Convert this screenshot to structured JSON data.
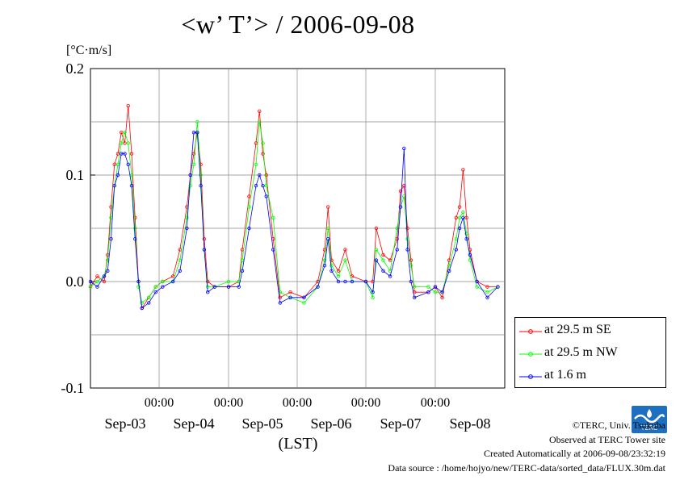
{
  "title": "<w’ T’> / 2006-09-08",
  "unit_label": "[°C·m/s]",
  "credits": {
    "copyright": "©TERC, Univ. Tsukuba",
    "site": "Observed at TERC Tower site",
    "created": "Created Automatically at 2006-09-08/23:32:19",
    "source": "Data source : /home/hojyo/new/TERC-data/sorted_data/FLUX.30m.dat"
  },
  "logo_text": "TERC",
  "legend": [
    {
      "label": "at 29.5 m SE",
      "color": "#ff0000"
    },
    {
      "label": "at 29.5 m NW",
      "color": "#00ff00"
    },
    {
      "label": "at 1.6 m",
      "color": "#0000ff"
    }
  ],
  "chart_data": {
    "type": "line",
    "title": "<w’ T’> / 2006-09-08",
    "ylabel": "[°C·m/s]",
    "xlabel": "(LST)",
    "ylim": [
      -0.1,
      0.2
    ],
    "yticks": [
      -0.1,
      0.0,
      0.1,
      0.2
    ],
    "ytick_labels": [
      "-0.1",
      "0.0",
      "0.1",
      "0.2"
    ],
    "xlim_days": [
      0,
      6
    ],
    "day_labels": [
      "Sep-03",
      "Sep-04",
      "Sep-05",
      "Sep-06",
      "Sep-07",
      "Sep-08"
    ],
    "time_label": "00:00",
    "grid": true,
    "legend_position": "right",
    "series": [
      {
        "name": "at 29.5 m SE",
        "color": "#ff0000",
        "points": [
          [
            0,
            -0.005
          ],
          [
            0.1,
            0.005
          ],
          [
            0.2,
            0.0
          ],
          [
            0.25,
            0.025
          ],
          [
            0.3,
            0.07
          ],
          [
            0.35,
            0.11
          ],
          [
            0.4,
            0.12
          ],
          [
            0.45,
            0.14
          ],
          [
            0.5,
            0.13
          ],
          [
            0.55,
            0.165
          ],
          [
            0.6,
            0.12
          ],
          [
            0.65,
            0.06
          ],
          [
            0.7,
            0.0
          ],
          [
            0.75,
            -0.025
          ],
          [
            0.85,
            -0.015
          ],
          [
            0.95,
            -0.005
          ],
          [
            1.05,
            0.0
          ],
          [
            1.2,
            0.005
          ],
          [
            1.3,
            0.03
          ],
          [
            1.4,
            0.07
          ],
          [
            1.45,
            0.1
          ],
          [
            1.5,
            0.12
          ],
          [
            1.55,
            0.14
          ],
          [
            1.6,
            0.11
          ],
          [
            1.65,
            0.04
          ],
          [
            1.7,
            0.0
          ],
          [
            1.8,
            -0.005
          ],
          [
            2.0,
            -0.005
          ],
          [
            2.15,
            0.0
          ],
          [
            2.2,
            0.03
          ],
          [
            2.3,
            0.08
          ],
          [
            2.4,
            0.13
          ],
          [
            2.45,
            0.16
          ],
          [
            2.5,
            0.12
          ],
          [
            2.55,
            0.1
          ],
          [
            2.65,
            0.04
          ],
          [
            2.75,
            -0.015
          ],
          [
            2.9,
            -0.01
          ],
          [
            3.1,
            -0.015
          ],
          [
            3.3,
            0.0
          ],
          [
            3.4,
            0.03
          ],
          [
            3.45,
            0.07
          ],
          [
            3.5,
            0.02
          ],
          [
            3.6,
            0.01
          ],
          [
            3.7,
            0.03
          ],
          [
            3.8,
            0.005
          ],
          [
            4.0,
            0.0
          ],
          [
            4.1,
            0.0
          ],
          [
            4.15,
            0.05
          ],
          [
            4.25,
            0.025
          ],
          [
            4.35,
            0.02
          ],
          [
            4.45,
            0.04
          ],
          [
            4.5,
            0.085
          ],
          [
            4.55,
            0.09
          ],
          [
            4.6,
            0.05
          ],
          [
            4.65,
            0.02
          ],
          [
            4.7,
            -0.01
          ],
          [
            4.9,
            -0.01
          ],
          [
            5.0,
            -0.005
          ],
          [
            5.1,
            -0.015
          ],
          [
            5.2,
            0.02
          ],
          [
            5.3,
            0.06
          ],
          [
            5.35,
            0.07
          ],
          [
            5.4,
            0.105
          ],
          [
            5.45,
            0.06
          ],
          [
            5.5,
            0.03
          ],
          [
            5.6,
            0.0
          ],
          [
            5.75,
            -0.005
          ],
          [
            5.9,
            -0.005
          ]
        ]
      },
      {
        "name": "at 29.5 m NW",
        "color": "#00ff00",
        "points": [
          [
            0,
            -0.005
          ],
          [
            0.1,
            0.0
          ],
          [
            0.2,
            0.005
          ],
          [
            0.25,
            0.02
          ],
          [
            0.3,
            0.06
          ],
          [
            0.35,
            0.09
          ],
          [
            0.4,
            0.11
          ],
          [
            0.45,
            0.13
          ],
          [
            0.5,
            0.14
          ],
          [
            0.55,
            0.13
          ],
          [
            0.6,
            0.1
          ],
          [
            0.65,
            0.05
          ],
          [
            0.7,
            -0.005
          ],
          [
            0.75,
            -0.02
          ],
          [
            0.85,
            -0.015
          ],
          [
            0.95,
            -0.005
          ],
          [
            1.05,
            0.0
          ],
          [
            1.2,
            0.0
          ],
          [
            1.3,
            0.02
          ],
          [
            1.4,
            0.06
          ],
          [
            1.45,
            0.09
          ],
          [
            1.5,
            0.11
          ],
          [
            1.55,
            0.15
          ],
          [
            1.6,
            0.1
          ],
          [
            1.65,
            0.03
          ],
          [
            1.7,
            -0.005
          ],
          [
            1.8,
            -0.005
          ],
          [
            2.0,
            0.0
          ],
          [
            2.15,
            0.0
          ],
          [
            2.2,
            0.02
          ],
          [
            2.3,
            0.07
          ],
          [
            2.4,
            0.11
          ],
          [
            2.45,
            0.15
          ],
          [
            2.5,
            0.13
          ],
          [
            2.55,
            0.09
          ],
          [
            2.65,
            0.06
          ],
          [
            2.75,
            -0.01
          ],
          [
            2.9,
            -0.015
          ],
          [
            3.1,
            -0.02
          ],
          [
            3.3,
            -0.005
          ],
          [
            3.4,
            0.02
          ],
          [
            3.45,
            0.05
          ],
          [
            3.5,
            0.015
          ],
          [
            3.6,
            0.005
          ],
          [
            3.7,
            0.02
          ],
          [
            3.8,
            0.0
          ],
          [
            4.0,
            0.0
          ],
          [
            4.1,
            -0.015
          ],
          [
            4.15,
            0.03
          ],
          [
            4.25,
            0.02
          ],
          [
            4.35,
            0.01
          ],
          [
            4.45,
            0.05
          ],
          [
            4.5,
            0.07
          ],
          [
            4.55,
            0.08
          ],
          [
            4.6,
            0.04
          ],
          [
            4.65,
            0.015
          ],
          [
            4.7,
            -0.005
          ],
          [
            4.9,
            -0.005
          ],
          [
            5.0,
            -0.01
          ],
          [
            5.1,
            -0.01
          ],
          [
            5.2,
            0.015
          ],
          [
            5.3,
            0.04
          ],
          [
            5.35,
            0.06
          ],
          [
            5.4,
            0.065
          ],
          [
            5.45,
            0.045
          ],
          [
            5.5,
            0.02
          ],
          [
            5.6,
            -0.005
          ],
          [
            5.75,
            -0.01
          ],
          [
            5.9,
            -0.005
          ]
        ]
      },
      {
        "name": "at 1.6 m",
        "color": "#0000ff",
        "points": [
          [
            0,
            0.0
          ],
          [
            0.1,
            -0.005
          ],
          [
            0.2,
            0.005
          ],
          [
            0.25,
            0.01
          ],
          [
            0.3,
            0.04
          ],
          [
            0.35,
            0.09
          ],
          [
            0.4,
            0.1
          ],
          [
            0.45,
            0.12
          ],
          [
            0.5,
            0.12
          ],
          [
            0.55,
            0.11
          ],
          [
            0.6,
            0.09
          ],
          [
            0.65,
            0.04
          ],
          [
            0.7,
            0.0
          ],
          [
            0.75,
            -0.025
          ],
          [
            0.85,
            -0.02
          ],
          [
            0.95,
            -0.01
          ],
          [
            1.05,
            -0.005
          ],
          [
            1.2,
            0.0
          ],
          [
            1.3,
            0.01
          ],
          [
            1.4,
            0.05
          ],
          [
            1.45,
            0.1
          ],
          [
            1.5,
            0.14
          ],
          [
            1.55,
            0.14
          ],
          [
            1.6,
            0.09
          ],
          [
            1.65,
            0.03
          ],
          [
            1.7,
            -0.01
          ],
          [
            1.8,
            -0.005
          ],
          [
            2.0,
            -0.005
          ],
          [
            2.15,
            -0.005
          ],
          [
            2.2,
            0.01
          ],
          [
            2.3,
            0.05
          ],
          [
            2.4,
            0.09
          ],
          [
            2.45,
            0.1
          ],
          [
            2.5,
            0.09
          ],
          [
            2.55,
            0.08
          ],
          [
            2.65,
            0.03
          ],
          [
            2.75,
            -0.02
          ],
          [
            2.9,
            -0.015
          ],
          [
            3.1,
            -0.015
          ],
          [
            3.3,
            -0.005
          ],
          [
            3.4,
            0.015
          ],
          [
            3.45,
            0.04
          ],
          [
            3.5,
            0.01
          ],
          [
            3.6,
            0.0
          ],
          [
            3.7,
            0.0
          ],
          [
            3.8,
            0.0
          ],
          [
            4.0,
            0.0
          ],
          [
            4.1,
            -0.01
          ],
          [
            4.15,
            0.02
          ],
          [
            4.25,
            0.01
          ],
          [
            4.35,
            0.005
          ],
          [
            4.45,
            0.03
          ],
          [
            4.5,
            0.07
          ],
          [
            4.55,
            0.125
          ],
          [
            4.6,
            0.03
          ],
          [
            4.65,
            0.0
          ],
          [
            4.7,
            -0.015
          ],
          [
            4.9,
            -0.01
          ],
          [
            5.0,
            -0.005
          ],
          [
            5.1,
            -0.01
          ],
          [
            5.2,
            0.01
          ],
          [
            5.3,
            0.03
          ],
          [
            5.35,
            0.05
          ],
          [
            5.4,
            0.06
          ],
          [
            5.45,
            0.04
          ],
          [
            5.5,
            0.025
          ],
          [
            5.6,
            0.0
          ],
          [
            5.75,
            -0.015
          ],
          [
            5.9,
            -0.005
          ]
        ]
      }
    ]
  }
}
